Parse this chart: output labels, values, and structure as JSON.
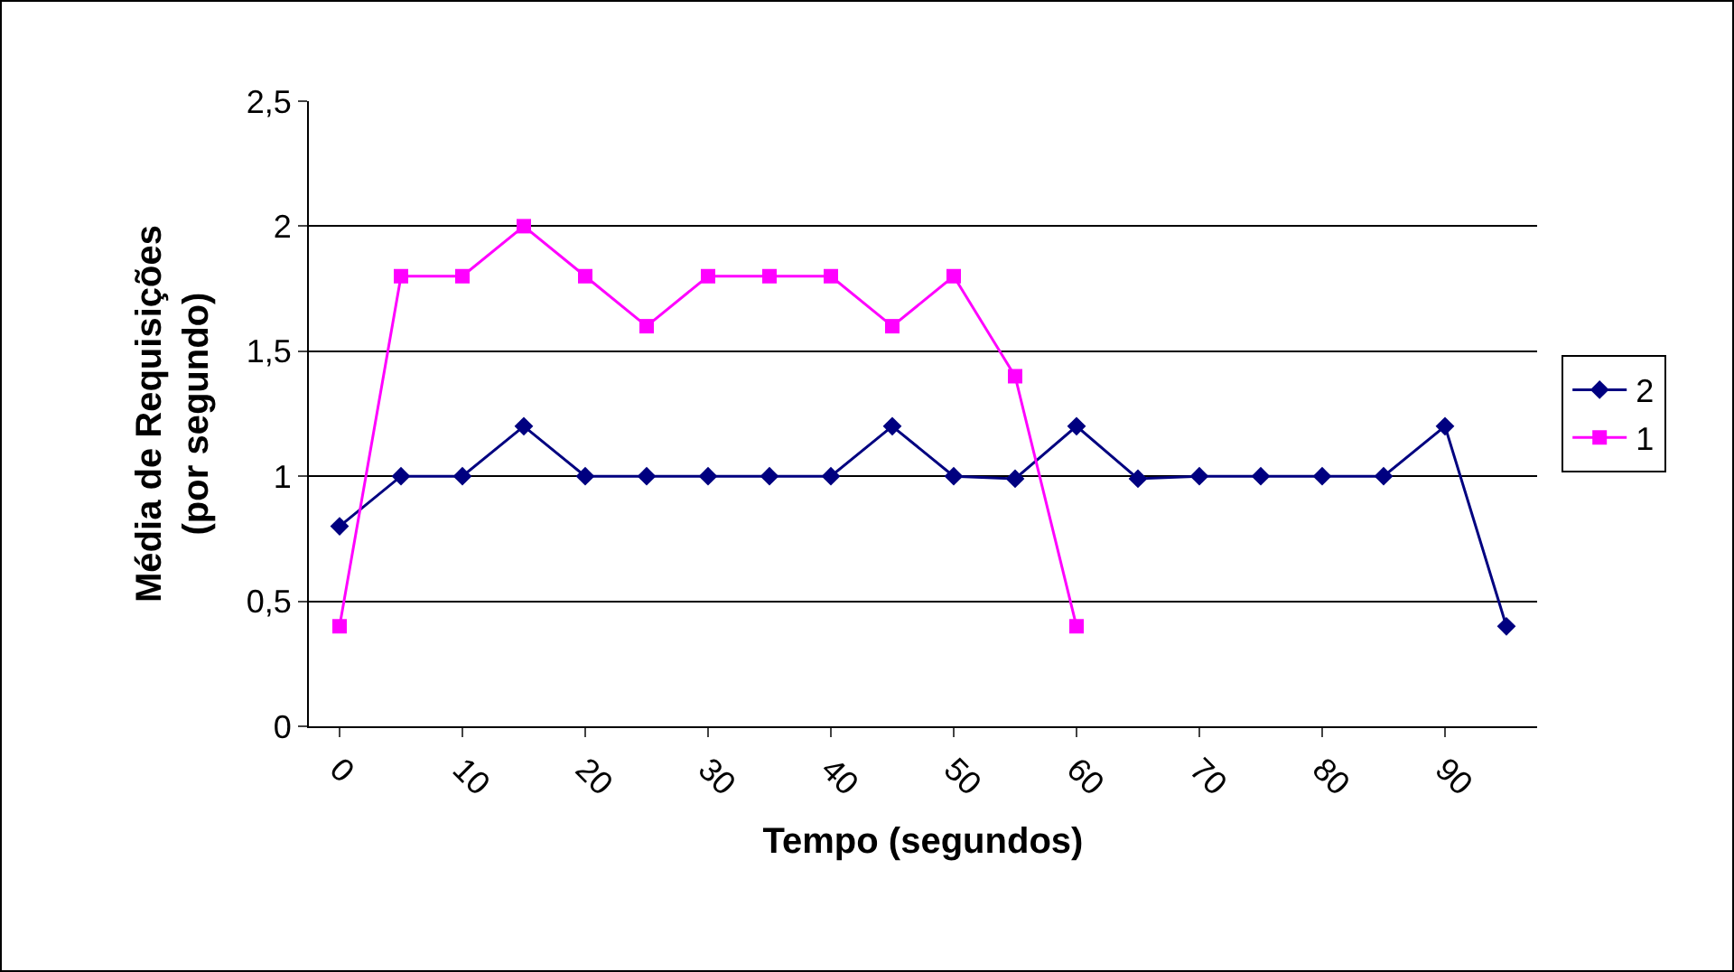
{
  "chart_data": {
    "type": "line",
    "xlabel": "Tempo (segundos)",
    "ylabel": "Média de Requisições\n(por segundo)",
    "categories": [
      "0",
      null,
      "10",
      null,
      "20",
      null,
      "30",
      null,
      "40",
      null,
      "50",
      null,
      "60",
      null,
      "70",
      null,
      "80",
      null,
      "90",
      null
    ],
    "ylim": [
      0,
      2.5
    ],
    "yticks": [
      0,
      {
        "value": 0.5,
        "label": "0,5"
      },
      1,
      {
        "value": 1.5,
        "label": "1,5"
      },
      2,
      {
        "value": 2.5,
        "label": "2,5"
      }
    ],
    "grid": "y",
    "legend": "right",
    "series": [
      {
        "name": "2",
        "color": "#000080",
        "marker": "diamond",
        "values": [
          0.8,
          1,
          1,
          1.2,
          1,
          1,
          1,
          1,
          1,
          1.2,
          1,
          0.99,
          1.2,
          0.99,
          1,
          1,
          1,
          1,
          1.2,
          0.4
        ]
      },
      {
        "name": "1",
        "color": "#ff00ff",
        "marker": "square",
        "values": [
          0.4,
          1.8,
          1.8,
          2,
          1.8,
          1.6,
          1.8,
          1.8,
          1.8,
          1.6,
          1.8,
          1.4,
          0.4,
          null,
          null,
          null,
          null,
          null,
          null,
          null
        ]
      }
    ]
  }
}
